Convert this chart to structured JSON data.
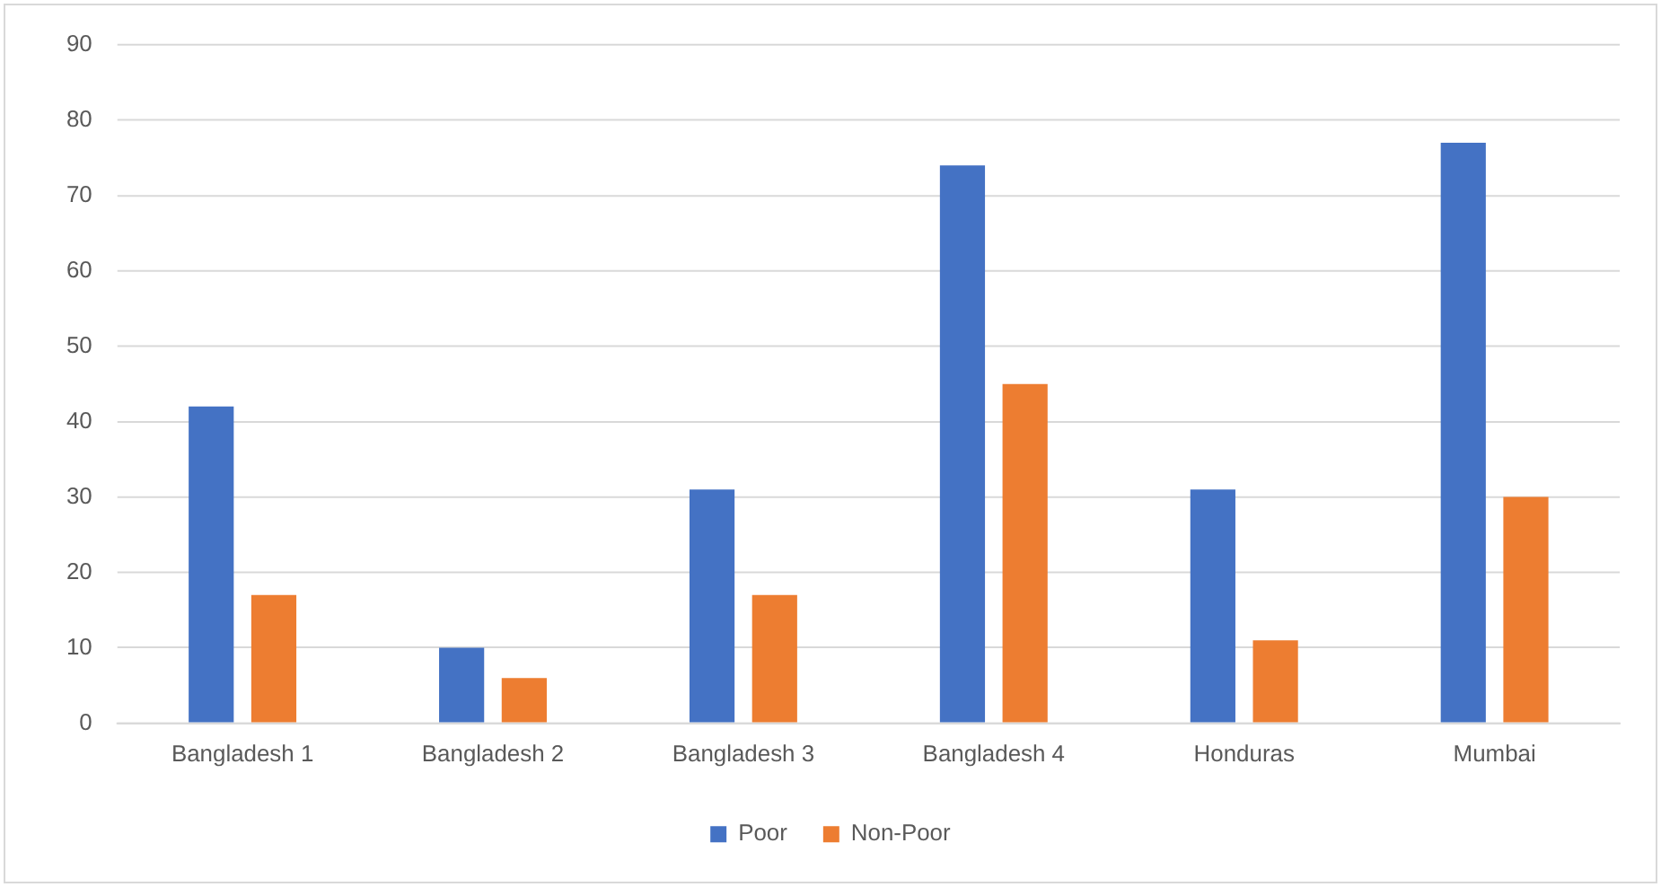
{
  "chart_data": {
    "type": "bar",
    "categories": [
      "Bangladesh 1",
      "Bangladesh 2",
      "Bangladesh 3",
      "Bangladesh 4",
      "Honduras",
      "Mumbai"
    ],
    "series": [
      {
        "name": "Poor",
        "color": "#4472c4",
        "values": [
          42,
          10,
          31,
          74,
          31,
          77
        ]
      },
      {
        "name": "Non-Poor",
        "color": "#ed7d31",
        "values": [
          17,
          6,
          17,
          45,
          11,
          30
        ]
      }
    ],
    "ylim": [
      0,
      90
    ],
    "yticks": [
      0,
      10,
      20,
      30,
      40,
      50,
      60,
      70,
      80,
      90
    ],
    "grid": "y",
    "legend": "bottom"
  }
}
